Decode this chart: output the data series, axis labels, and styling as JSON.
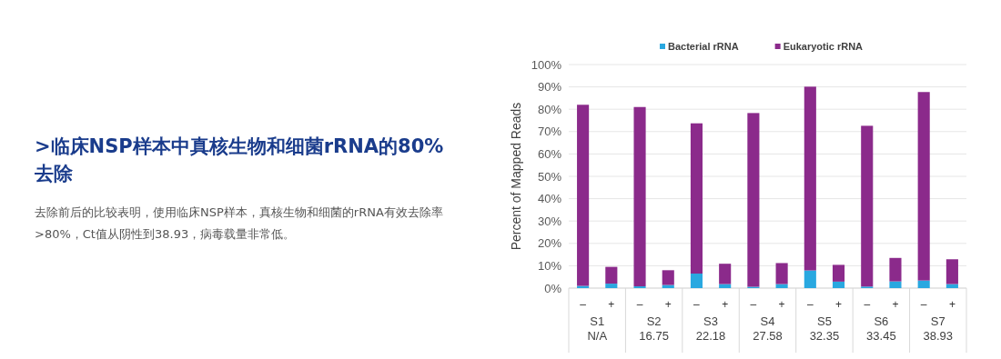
{
  "chart_data": {
    "type": "bar",
    "title": ">临床NSP样本中真核生物和细菌rRNA的80%去除",
    "subtitle": "去除前后的比较表明，使用临床NSP样本，真核生物和细菌的rRNA有效去除率>80%，Ct值从阴性到38.93，病毒载量非常低。",
    "ylabel": "Percent of Mapped Reads",
    "categories": [
      "–",
      "+",
      "–",
      "+",
      "–",
      "+",
      "–",
      "+",
      "–",
      "+",
      "–",
      "+",
      "–",
      "+"
    ],
    "annotations": [
      "S1\nN/A",
      "S2\n16.75",
      "S3\n22.18",
      "S4\n27.58",
      "S5\n32.35",
      "S6\n33.45",
      "S7\n38.93"
    ],
    "stacked": true,
    "series": [
      {
        "name": "Bacterial rRNA",
        "color": "#29a8e0",
        "values": [
          1.0,
          2.0,
          0.8,
          1.4,
          6.5,
          1.8,
          0.6,
          1.8,
          7.9,
          2.9,
          0.7,
          3.0,
          3.4,
          1.8
        ]
      },
      {
        "name": "Eukaryotic rRNA",
        "color": "#8b2a8b",
        "values": [
          81.0,
          7.5,
          80.2,
          6.6,
          67.2,
          9.1,
          77.7,
          9.4,
          82.2,
          7.5,
          71.9,
          10.5,
          84.3,
          11.1
        ]
      }
    ],
    "ylim": [
      0,
      100
    ],
    "yticks": [
      {
        "value": 0,
        "label": "0%"
      },
      {
        "value": 10,
        "label": "10%"
      },
      {
        "value": 20,
        "label": "20%"
      },
      {
        "value": 30,
        "label": "30%"
      },
      {
        "value": 40,
        "label": "40%"
      },
      {
        "value": 50,
        "label": "50%"
      },
      {
        "value": 60,
        "label": "60%"
      },
      {
        "value": 70,
        "label": "70%"
      },
      {
        "value": 80,
        "label": "80%"
      },
      {
        "value": 90,
        "label": "90%"
      },
      {
        "value": 100,
        "label": "100%"
      }
    ],
    "grid": "y",
    "legend": "top"
  }
}
